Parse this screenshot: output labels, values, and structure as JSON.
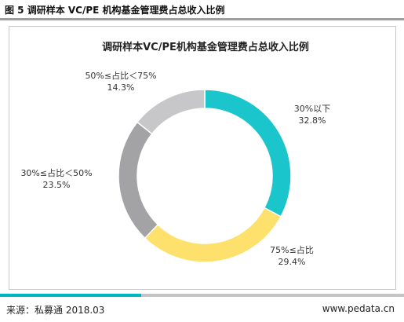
{
  "header": {
    "figure_title": "图 5 调研样本 VC/PE 机构基金管理费占总收入比例"
  },
  "footer": {
    "source": "来源：私募通 2018.03",
    "website": "www.pedata.cn"
  },
  "chart_data": {
    "type": "pie",
    "style": "donut",
    "title": "调研样本VC/PE机构基金管理费占总收入比例",
    "slices": [
      {
        "label": "30%以下",
        "value": 32.8,
        "value_label": "32.8%",
        "color": "#1ac6cc"
      },
      {
        "label": "75%≤占比",
        "value": 29.4,
        "value_label": "29.4%",
        "color": "#fde16c"
      },
      {
        "label": "30%≤占比＜50%",
        "value": 23.5,
        "value_label": "23.5%",
        "color": "#a3a3a5"
      },
      {
        "label": "50%≤占比＜75%",
        "value": 14.3,
        "value_label": "14.3%",
        "color": "#c7c6c8"
      }
    ],
    "legend": "none"
  }
}
